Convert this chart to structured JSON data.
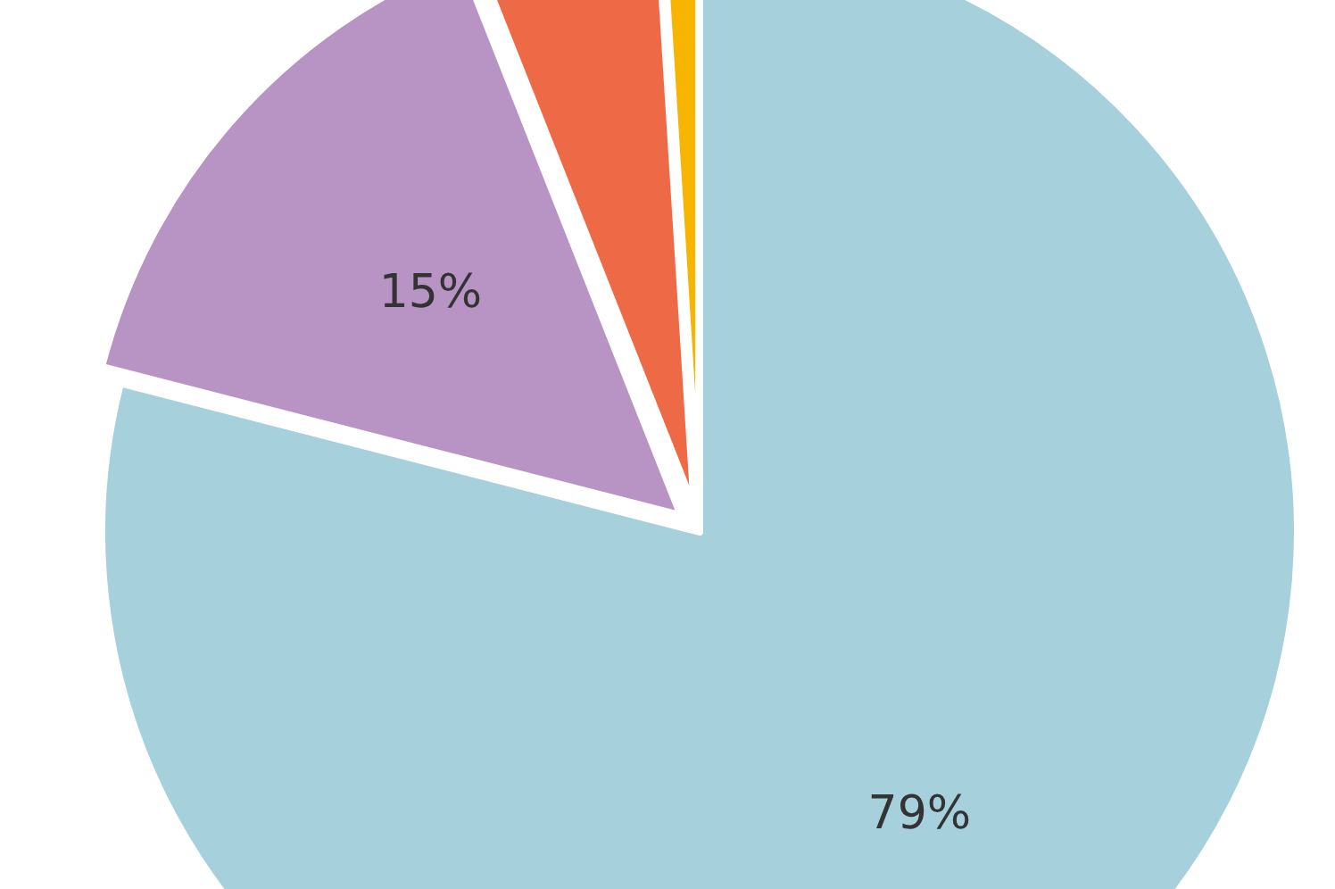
{
  "chart_data": {
    "type": "pie",
    "categories": [
      null,
      null,
      null,
      null
    ],
    "values": [
      79,
      15,
      5,
      1
    ],
    "colors": [
      "#a5d0dc",
      "#b794c3",
      "#ee6a46",
      "#f7b500"
    ],
    "value_labels": [
      "79%",
      "15%",
      null,
      null
    ]
  }
}
